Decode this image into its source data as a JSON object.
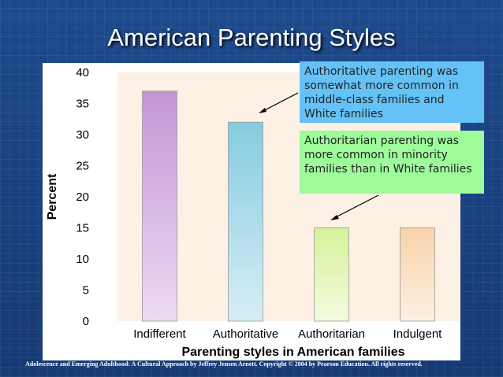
{
  "slide": {
    "title": "American Parenting Styles",
    "footer": "Adolescence and Emerging Adulthood: A Cultural Approach by Jeffrey Jensen Arnett.  Copyright © 2004 by Pearson Education. All rights reserved."
  },
  "callouts": [
    {
      "text": "Authoritative parenting was somewhat more common in middle-class families and White families",
      "color": "#64c2f6"
    },
    {
      "text": "Authoritarian parenting was more common in minority families than in White families",
      "color": "#9dfb9a"
    }
  ],
  "chart_data": {
    "type": "bar",
    "categories": [
      "Indifferent",
      "Authoritative",
      "Authoritarian",
      "Indulgent"
    ],
    "values": [
      37,
      32,
      15,
      15
    ],
    "xlabel": "Parenting styles in American families",
    "ylabel": "Percent",
    "ylim": [
      0,
      40
    ],
    "yticks": [
      0,
      5,
      10,
      15,
      20,
      25,
      30,
      35,
      40
    ],
    "grid": false,
    "plot_background": "#fdf1e6",
    "bar_colors": [
      [
        "#c496d6",
        "#ecdaf2"
      ],
      [
        "#86cbe0",
        "#d6eef5"
      ],
      [
        "#d6f29a",
        "#f3fbdf"
      ],
      [
        "#f7d3a8",
        "#fdf0e3"
      ]
    ]
  }
}
